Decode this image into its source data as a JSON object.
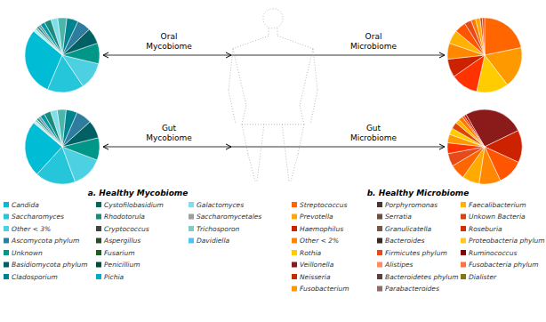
{
  "chart_data": [
    {
      "type": "pie",
      "title": "Oral\nMycobiome",
      "values": [
        30,
        16,
        12,
        9,
        7,
        6,
        5,
        4,
        3,
        3,
        2,
        1,
        1,
        1,
        1
      ],
      "colors": [
        "#00BCD4",
        "#26C6DA",
        "#4DD0E1",
        "#009688",
        "#006064",
        "#2E7D9E",
        "#00838F",
        "#4DB6AC",
        "#80DEEA",
        "#1a8a7a",
        "#0097A7",
        "#5e9ea0",
        "#3d8b8b",
        "#7ececa",
        "#b2ebf2"
      ]
    },
    {
      "type": "pie",
      "title": "Gut\nMycobiome",
      "values": [
        25,
        18,
        14,
        10,
        8,
        7,
        5,
        4,
        3,
        3,
        2,
        1,
        1,
        1,
        1
      ],
      "colors": [
        "#00BCD4",
        "#26C6DA",
        "#4DD0E1",
        "#009688",
        "#006064",
        "#2E7D9E",
        "#00838F",
        "#4DB6AC",
        "#80DEEA",
        "#1a8a7a",
        "#0097A7",
        "#5e9ea0",
        "#3d8b8b",
        "#7ececa",
        "#b2ebf2"
      ]
    },
    {
      "type": "pie",
      "title": "Oral\nMicrobiome",
      "values": [
        22,
        18,
        14,
        12,
        8,
        7,
        6,
        5,
        3,
        2,
        2,
        1,
        1
      ],
      "colors": [
        "#FF6600",
        "#FF9900",
        "#FFCC00",
        "#FF3300",
        "#CC2200",
        "#FF8800",
        "#FFB300",
        "#FF5500",
        "#E64A19",
        "#FF7700",
        "#FFAA00",
        "#DD4400",
        "#FF4400"
      ]
    },
    {
      "type": "pie",
      "title": "Gut\nMicrobiome",
      "values": [
        28,
        15,
        12,
        10,
        8,
        7,
        6,
        5,
        4,
        3,
        3,
        2,
        2,
        1,
        1
      ],
      "colors": [
        "#8B1A1A",
        "#CC2200",
        "#FF5500",
        "#FF8800",
        "#FFAA00",
        "#FF6600",
        "#E64A19",
        "#FF3300",
        "#FF9900",
        "#FFCC00",
        "#DD4400",
        "#FFB300",
        "#FF7700",
        "#FF4400",
        "#BB1100"
      ]
    }
  ],
  "annotations": [
    {
      "text": "a. Healthy Mycobiome",
      "columns": [
        [
          {
            "label": "Candida",
            "color": "#00BCD4"
          },
          {
            "label": "Saccharomyces",
            "color": "#26C6DA"
          },
          {
            "label": "Other < 3%",
            "color": "#4DD0E1"
          },
          {
            "label": "Ascomycota phylum",
            "color": "#2E7D9E"
          },
          {
            "label": "Unknown",
            "color": "#009688"
          },
          {
            "label": "Basidiomycota phylum",
            "color": "#006064"
          },
          {
            "label": "Cladosporium",
            "color": "#00838F"
          }
        ],
        [
          {
            "label": "Cystofilobasidium",
            "color": "#00695C"
          },
          {
            "label": "Rhodotorula",
            "color": "#1a8a7a"
          },
          {
            "label": "Cryptococcus",
            "color": "#424242"
          },
          {
            "label": "Aspergillus",
            "color": "#2d4a2d"
          },
          {
            "label": "Fusarium",
            "color": "#1B5E20"
          },
          {
            "label": "Penicillium",
            "color": "#004D40"
          },
          {
            "label": "Pichia",
            "color": "#00ACC1"
          }
        ],
        [
          {
            "label": "Galactomyces",
            "color": "#80DEEA"
          },
          {
            "label": "Saccharomycetales",
            "color": "#9E9E9E"
          },
          {
            "label": "Trichosporon",
            "color": "#80CBC4"
          },
          {
            "label": "Davidiella",
            "color": "#4FC3F7"
          }
        ]
      ]
    },
    {
      "text": "b. Healthy Microbiome",
      "columns": [
        [
          {
            "label": "Streptococcus",
            "color": "#FF6600"
          },
          {
            "label": "Prevotella",
            "color": "#FFAA00"
          },
          {
            "label": "Haemophilus",
            "color": "#CC2200"
          },
          {
            "label": "Other < 2%",
            "color": "#FF8800"
          },
          {
            "label": "Rothia",
            "color": "#FFCC00"
          },
          {
            "label": "Veillonella",
            "color": "#8B1A1A"
          },
          {
            "label": "Neisseria",
            "color": "#BB3300"
          },
          {
            "label": "Fusobacterium",
            "color": "#FF9900"
          }
        ],
        [
          {
            "label": "Porphyromonas",
            "color": "#4E342E"
          },
          {
            "label": "Serratia",
            "color": "#6D4C41"
          },
          {
            "label": "Granulicatella",
            "color": "#795548"
          },
          {
            "label": "Bacteroides",
            "color": "#3E2723"
          },
          {
            "label": "Firmicutes phylum",
            "color": "#E64A19"
          },
          {
            "label": "Alistipes",
            "color": "#FF8A65"
          },
          {
            "label": "Bacteroidetes phylum",
            "color": "#5D4037"
          },
          {
            "label": "Parabacteroides",
            "color": "#8D6E63"
          }
        ],
        [
          {
            "label": "Faecalibacterium",
            "color": "#FFB300"
          },
          {
            "label": "Unkown Bacteria",
            "color": "#D84315"
          },
          {
            "label": "Roseburia",
            "color": "#CC3300"
          },
          {
            "label": "Proteobacteria phylum",
            "color": "#FFCA28"
          },
          {
            "label": "Ruminococcus",
            "color": "#880000"
          },
          {
            "label": "Fusobacteria phylum",
            "color": "#FF7043"
          },
          {
            "label": "Dialister",
            "color": "#827717"
          }
        ]
      ]
    }
  ]
}
